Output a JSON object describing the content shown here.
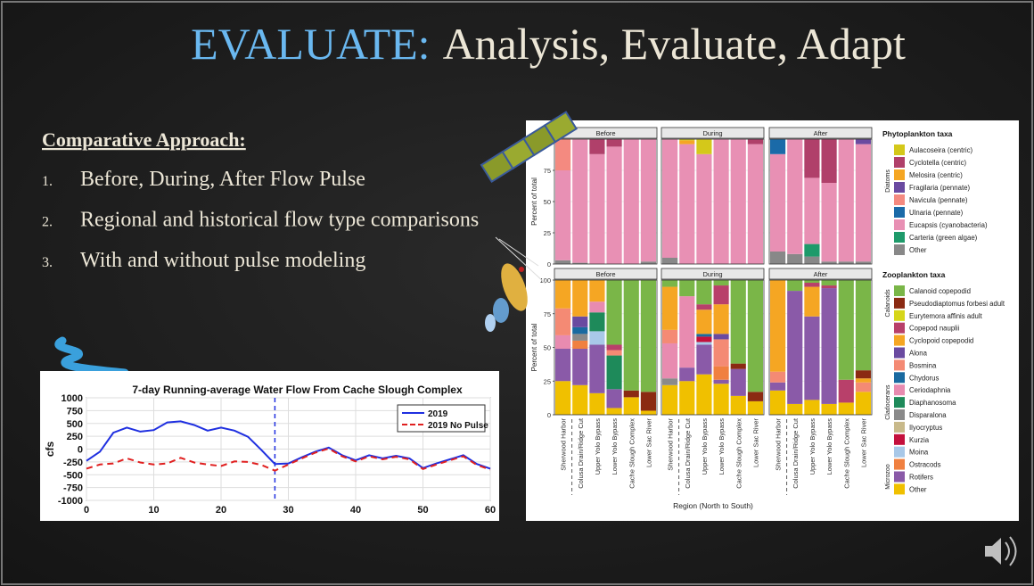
{
  "title": {
    "accent": "EVALUATE:",
    "rest": "Analysis, Evaluate, Adapt"
  },
  "heading": "Comparative Approach:",
  "list": [
    {
      "number": "1.",
      "text": "Before, During, After Flow Pulse"
    },
    {
      "number": "2.",
      "text": "Regional and historical flow type comparisons"
    },
    {
      "number": "3.",
      "text": "With and without pulse modeling"
    }
  ],
  "chart_data": [
    {
      "type": "line",
      "title": "7-day Running-average Water Flow From Cache Slough Complex",
      "ylabel": "cfs",
      "x": [
        0,
        2,
        4,
        6,
        8,
        10,
        12,
        14,
        16,
        18,
        20,
        22,
        24,
        26,
        28,
        30,
        32,
        34,
        36,
        38,
        40,
        42,
        44,
        46,
        48,
        50,
        52,
        54,
        56,
        58,
        60
      ],
      "series": [
        {
          "name": "2019",
          "color": "#1f2fe0",
          "dash": false,
          "values": [
            -230,
            -50,
            320,
            420,
            340,
            370,
            520,
            540,
            470,
            360,
            420,
            360,
            240,
            -20,
            -290,
            -280,
            -160,
            -50,
            30,
            -120,
            -220,
            -120,
            -180,
            -130,
            -180,
            -370,
            -280,
            -200,
            -120,
            -290,
            -380
          ]
        },
        {
          "name": "2019 No Pulse",
          "color": "#e02020",
          "dash": true,
          "values": [
            -380,
            -300,
            -280,
            -180,
            -260,
            -300,
            -280,
            -170,
            -260,
            -300,
            -330,
            -240,
            -250,
            -310,
            -420,
            -300,
            -180,
            -70,
            10,
            -140,
            -240,
            -140,
            -200,
            -150,
            -200,
            -390,
            -300,
            -220,
            -140,
            -310,
            -400
          ]
        }
      ],
      "vline": 28,
      "xlim": [
        0,
        60
      ],
      "xticks": [
        0,
        10,
        20,
        30,
        40,
        50,
        60
      ],
      "ylim": [
        -1000,
        1000
      ],
      "yticks": [
        -1000,
        -750,
        -500,
        -250,
        0,
        250,
        500,
        750,
        1000
      ],
      "grid": true,
      "legend": "upper right"
    },
    {
      "type": "bar",
      "stacked": true,
      "ylabel": "Percent of total",
      "facets": [
        "Before",
        "During",
        "After"
      ],
      "legend_title": "Phytoplankton taxa",
      "groups": [
        "Diatoms"
      ],
      "ylim": [
        0,
        100
      ],
      "yticks": [
        0,
        25,
        50,
        75,
        100
      ],
      "grid": true,
      "series": [
        {
          "name": "Aulacoseira (centric)",
          "color": "#d4c81a",
          "values": [
            [
              0,
              0,
              0,
              0,
              0,
              0
            ],
            [
              0,
              1,
              12,
              0,
              0,
              0
            ],
            [
              0,
              0,
              0,
              0,
              0,
              0
            ]
          ]
        },
        {
          "name": "Cyclotella (centric)",
          "color": "#b0406a",
          "values": [
            [
              0,
              0,
              12,
              6,
              0,
              0
            ],
            [
              0,
              0,
              0,
              0,
              0,
              4
            ],
            [
              0,
              0,
              31,
              35,
              0,
              0
            ]
          ]
        },
        {
          "name": "Melosira (centric)",
          "color": "#f5a623",
          "values": [
            [
              0,
              0,
              0,
              0,
              0,
              0
            ],
            [
              0,
              3,
              0,
              0,
              0,
              0
            ],
            [
              0,
              0,
              0,
              0,
              0,
              0
            ]
          ]
        },
        {
          "name": "Fragilaria (pennate)",
          "color": "#6a4aa0",
          "values": [
            [
              0,
              0,
              0,
              0,
              0,
              0
            ],
            [
              0,
              0,
              0,
              0,
              0,
              0
            ],
            [
              0,
              0,
              0,
              0,
              0,
              4
            ]
          ]
        },
        {
          "name": "Navicula (pennate)",
          "color": "#f48a80",
          "values": [
            [
              25,
              0,
              0,
              0,
              0,
              0
            ],
            [
              0,
              0,
              0,
              0,
              0,
              0
            ],
            [
              0,
              0,
              0,
              0,
              0,
              0
            ]
          ]
        },
        {
          "name": "Ulnaria (pennate)",
          "color": "#1a6aa8",
          "values": [
            [
              0,
              0,
              0,
              0,
              0,
              0
            ],
            [
              0,
              0,
              0,
              0,
              0,
              0
            ],
            [
              12,
              0,
              0,
              0,
              0,
              0
            ]
          ]
        },
        {
          "name": "Eucapsis (cyanobacteria)",
          "color": "#e890b4",
          "values": [
            [
              72,
              99,
              88,
              94,
              100,
              98
            ],
            [
              95,
              96,
              88,
              100,
              100,
              96
            ],
            [
              78,
              92,
              53,
              63,
              98,
              94
            ]
          ]
        },
        {
          "name": "Carteria (green algae)",
          "color": "#1e9a6a",
          "values": [
            [
              0,
              0,
              0,
              0,
              0,
              0
            ],
            [
              0,
              0,
              0,
              0,
              0,
              0
            ],
            [
              0,
              0,
              10,
              0,
              0,
              0
            ]
          ]
        },
        {
          "name": "Other",
          "color": "#888888",
          "values": [
            [
              3,
              1,
              0,
              0,
              0,
              2
            ],
            [
              5,
              0,
              0,
              0,
              0,
              0
            ],
            [
              10,
              8,
              6,
              2,
              2,
              2
            ]
          ]
        }
      ]
    },
    {
      "type": "bar",
      "stacked": true,
      "ylabel": "Percent of total",
      "xlabel": "Region (North to South)",
      "facets": [
        "Before",
        "During",
        "After"
      ],
      "categories": [
        "Sherwood Harbor",
        "Colusa Drain/Ridge Cut",
        "Upper Yolo Bypass",
        "Lower Yolo Bypass",
        "Cache Slough Complex",
        "Lower Sac River"
      ],
      "legend_title": "Zooplankton taxa",
      "groups": [
        "Calanoids",
        "Cladocerans",
        "Microzoo"
      ],
      "ylim": [
        0,
        100
      ],
      "yticks": [
        0,
        25,
        50,
        75,
        100
      ],
      "grid": true,
      "series": [
        {
          "name": "Calanoid copepodid",
          "color": "#7ab648",
          "values": [
            [
              0,
              0,
              0,
              48,
              82,
              83
            ],
            [
              5,
              12,
              18,
              4,
              62,
              83
            ],
            [
              0,
              8,
              2,
              4,
              74,
              67
            ]
          ]
        },
        {
          "name": "Pseudodiaptomus forbesi adult",
          "color": "#8b2a12",
          "values": [
            [
              0,
              0,
              0,
              0,
              5,
              14
            ],
            [
              0,
              0,
              0,
              0,
              4,
              7
            ],
            [
              0,
              0,
              0,
              0,
              0,
              6
            ]
          ]
        },
        {
          "name": "Eurytemora affinis adult",
          "color": "#d6d61a",
          "values": [
            [
              0,
              0,
              0,
              0,
              0,
              0
            ],
            [
              0,
              0,
              0,
              0,
              0,
              0
            ],
            [
              0,
              0,
              0,
              0,
              0,
              0
            ]
          ]
        },
        {
          "name": "Copepod nauplii",
          "color": "#b8406a",
          "values": [
            [
              0,
              0,
              0,
              4,
              0,
              0
            ],
            [
              0,
              0,
              4,
              14,
              0,
              0
            ],
            [
              0,
              0,
              3,
              2,
              17,
              0
            ]
          ]
        },
        {
          "name": "Cyclopoid copepodid",
          "color": "#f5a623",
          "values": [
            [
              21,
              27,
              16,
              0,
              0,
              0
            ],
            [
              32,
              0,
              18,
              22,
              0,
              0
            ],
            [
              68,
              0,
              22,
              0,
              0,
              3
            ]
          ]
        },
        {
          "name": "Alona",
          "color": "#6a4aa0",
          "values": [
            [
              0,
              8,
              0,
              0,
              0,
              0
            ],
            [
              0,
              0,
              0,
              4,
              0,
              0
            ],
            [
              0,
              0,
              0,
              0,
              0,
              0
            ]
          ]
        },
        {
          "name": "Bosmina",
          "color": "#f48a74",
          "values": [
            [
              20,
              0,
              0,
              4,
              0,
              0
            ],
            [
              10,
              0,
              0,
              20,
              0,
              0
            ],
            [
              8,
              0,
              0,
              0,
              0,
              7
            ]
          ]
        },
        {
          "name": "Chydorus",
          "color": "#1a6aa0",
          "values": [
            [
              0,
              5,
              0,
              0,
              0,
              0
            ],
            [
              0,
              0,
              2,
              0,
              0,
              0
            ],
            [
              0,
              0,
              0,
              0,
              0,
              0
            ]
          ]
        },
        {
          "name": "Ceriodaphnia",
          "color": "#e88bb0",
          "values": [
            [
              10,
              0,
              8,
              0,
              0,
              0
            ],
            [
              26,
              53,
              0,
              0,
              0,
              0
            ],
            [
              0,
              0,
              0,
              0,
              0,
              0
            ]
          ]
        },
        {
          "name": "Diaphanosoma",
          "color": "#1e8a5a",
          "values": [
            [
              0,
              0,
              14,
              25,
              0,
              0
            ],
            [
              0,
              0,
              0,
              0,
              0,
              0
            ],
            [
              0,
              0,
              0,
              0,
              0,
              0
            ]
          ]
        },
        {
          "name": "Disparalona",
          "color": "#8a8a8a",
          "values": [
            [
              0,
              5,
              0,
              0,
              0,
              0
            ],
            [
              5,
              0,
              0,
              0,
              0,
              0
            ],
            [
              0,
              0,
              0,
              0,
              0,
              0
            ]
          ]
        },
        {
          "name": "Ilyocryptus",
          "color": "#c8b98a",
          "values": [
            [
              0,
              0,
              0,
              0,
              0,
              0
            ],
            [
              0,
              0,
              0,
              0,
              0,
              0
            ],
            [
              0,
              0,
              0,
              0,
              0,
              0
            ]
          ]
        },
        {
          "name": "Kurzia",
          "color": "#c4103c",
          "values": [
            [
              0,
              0,
              0,
              0,
              0,
              0
            ],
            [
              0,
              0,
              4,
              0,
              0,
              0
            ],
            [
              0,
              0,
              0,
              0,
              0,
              0
            ]
          ]
        },
        {
          "name": "Moina",
          "color": "#a8c8e8",
          "values": [
            [
              0,
              0,
              10,
              0,
              0,
              0
            ],
            [
              0,
              0,
              2,
              0,
              0,
              0
            ],
            [
              0,
              0,
              0,
              0,
              0,
              0
            ]
          ]
        },
        {
          "name": "Ostracods",
          "color": "#f08040",
          "values": [
            [
              0,
              6,
              0,
              0,
              0,
              0
            ],
            [
              0,
              0,
              0,
              10,
              0,
              0
            ],
            [
              0,
              0,
              0,
              0,
              0,
              0
            ]
          ]
        },
        {
          "name": "Rotifers",
          "color": "#8a5aa8",
          "values": [
            [
              24,
              27,
              36,
              14,
              0,
              0
            ],
            [
              0,
              10,
              22,
              3,
              20,
              0
            ],
            [
              6,
              84,
              62,
              86,
              0,
              0
            ]
          ]
        },
        {
          "name": "Other",
          "color": "#f0c000",
          "values": [
            [
              25,
              22,
              16,
              5,
              13,
              3
            ],
            [
              22,
              25,
              30,
              23,
              14,
              10
            ],
            [
              18,
              8,
              11,
              8,
              9,
              17
            ]
          ]
        }
      ]
    }
  ]
}
